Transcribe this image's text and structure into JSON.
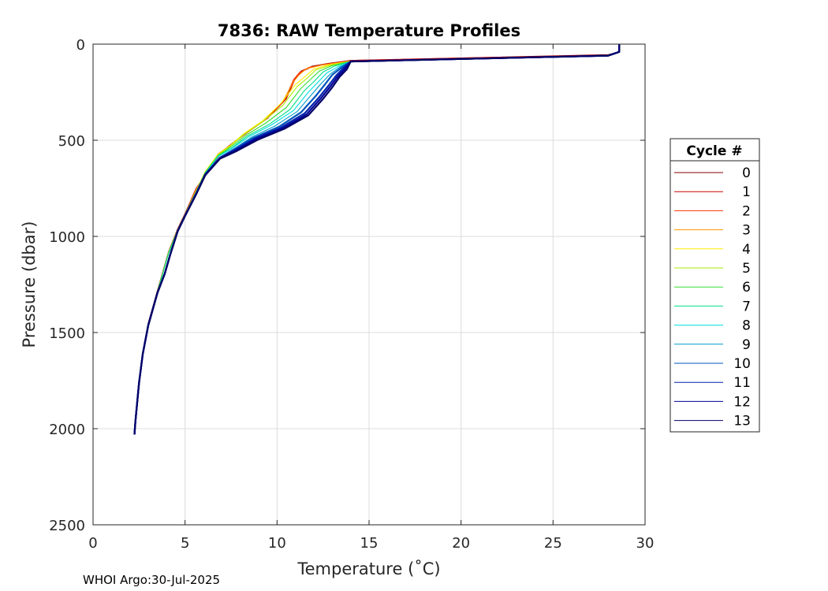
{
  "chart_data": {
    "type": "line",
    "title": "7836: RAW Temperature Profiles",
    "xlabel": "Temperature (˚C)",
    "ylabel": "Pressure (dbar)",
    "xlim": [
      0,
      30
    ],
    "ylim": [
      2500,
      0
    ],
    "y_reversed": true,
    "grid": true,
    "x_ticks": [
      0,
      5,
      10,
      15,
      20,
      25,
      30
    ],
    "y_ticks": [
      0,
      500,
      1000,
      1500,
      2000,
      2500
    ],
    "legend": {
      "title": "Cycle #",
      "position": "right",
      "entries": [
        "0",
        "1",
        "2",
        "3",
        "4",
        "5",
        "6",
        "7",
        "8",
        "9",
        "10",
        "11",
        "12",
        "13"
      ],
      "colors": [
        "#800000",
        "#cc0000",
        "#ff3300",
        "#ff9900",
        "#ffee00",
        "#aaee00",
        "#33dd33",
        "#00dd88",
        "#00dddd",
        "#0099cc",
        "#0055bb",
        "#0022aa",
        "#000099",
        "#000066"
      ]
    },
    "series": [
      {
        "name": "0",
        "temperature": [
          28.6,
          28.6,
          28.0,
          14.0,
          12.8,
          11.9,
          11.3,
          11.0,
          10.5,
          9.5,
          8.5,
          7.5,
          7.0,
          6.3,
          5.6,
          5.0,
          4.6,
          4.1,
          3.8,
          3.5,
          3.0,
          2.7,
          2.5,
          2.3,
          2.25
        ],
        "pressure": [
          0,
          40,
          55,
          85,
          100,
          115,
          140,
          175,
          280,
          380,
          450,
          520,
          560,
          650,
          750,
          880,
          960,
          1080,
          1180,
          1280,
          1450,
          1600,
          1750,
          1950,
          2030
        ]
      },
      {
        "name": "1",
        "temperature": [
          28.6,
          28.6,
          28.0,
          14.0,
          12.8,
          11.9,
          11.3,
          11.0,
          10.5,
          9.5,
          8.5,
          7.5,
          7.0,
          6.3,
          5.6,
          5.0,
          4.6,
          4.1,
          3.8,
          3.5,
          3.0,
          2.7,
          2.5,
          2.3,
          2.25
        ],
        "pressure": [
          0,
          40,
          56,
          85,
          102,
          118,
          145,
          178,
          285,
          385,
          452,
          522,
          562,
          652,
          752,
          882,
          962,
          1082,
          1182,
          1282,
          1452,
          1602,
          1752,
          1952,
          2030
        ]
      },
      {
        "name": "2",
        "temperature": [
          28.6,
          28.6,
          28.0,
          14.0,
          12.6,
          11.7,
          11.2,
          10.9,
          10.4,
          9.4,
          8.4,
          7.5,
          6.9,
          6.2,
          5.6,
          5.0,
          4.6,
          4.1,
          3.8,
          3.5,
          3.0,
          2.7,
          2.5,
          2.3,
          2.25
        ],
        "pressure": [
          0,
          40,
          58,
          87,
          105,
          122,
          150,
          185,
          290,
          390,
          455,
          525,
          565,
          655,
          755,
          883,
          963,
          1083,
          1183,
          1283,
          1453,
          1603,
          1753,
          1953,
          2030
        ]
      },
      {
        "name": "3",
        "temperature": [
          28.6,
          28.6,
          28.0,
          14.0,
          12.5,
          11.6,
          11.2,
          10.9,
          10.3,
          9.3,
          8.3,
          7.4,
          6.8,
          6.2,
          5.6,
          5.0,
          4.6,
          4.1,
          3.8,
          3.5,
          3.0,
          2.7,
          2.5,
          2.3,
          2.25
        ],
        "pressure": [
          0,
          40,
          60,
          88,
          108,
          128,
          160,
          195,
          300,
          395,
          460,
          530,
          570,
          660,
          760,
          884,
          964,
          1084,
          1184,
          1284,
          1454,
          1604,
          1754,
          1954,
          2030
        ]
      },
      {
        "name": "4",
        "temperature": [
          28.6,
          28.6,
          28.0,
          14.0,
          12.8,
          12.0,
          11.5,
          11.0,
          10.2,
          9.2,
          8.2,
          7.4,
          6.8,
          6.1,
          5.6,
          5.0,
          4.6,
          4.1,
          3.8,
          3.5,
          3.0,
          2.7,
          2.5,
          2.3,
          2.25
        ],
        "pressure": [
          0,
          40,
          60,
          88,
          108,
          130,
          170,
          210,
          310,
          400,
          465,
          532,
          572,
          662,
          762,
          885,
          965,
          1085,
          1185,
          1285,
          1455,
          1605,
          1755,
          1955,
          2030
        ]
      },
      {
        "name": "5",
        "temperature": [
          28.6,
          28.6,
          28.0,
          14.0,
          12.9,
          12.1,
          11.6,
          11.1,
          10.3,
          9.2,
          8.2,
          7.4,
          6.8,
          6.1,
          5.6,
          5.0,
          4.6,
          4.1,
          3.8,
          3.5,
          3.0,
          2.7,
          2.5,
          2.3,
          2.25
        ],
        "pressure": [
          0,
          40,
          60,
          89,
          110,
          135,
          180,
          220,
          320,
          405,
          470,
          535,
          575,
          665,
          765,
          886,
          966,
          1086,
          1186,
          1286,
          1456,
          1606,
          1756,
          1956,
          2030
        ]
      },
      {
        "name": "6",
        "temperature": [
          28.6,
          28.6,
          28.0,
          14.0,
          13.0,
          12.3,
          11.8,
          11.3,
          10.5,
          9.4,
          8.3,
          7.4,
          6.8,
          6.1,
          5.6,
          5.0,
          4.6,
          4.1,
          3.8,
          3.5,
          3.0,
          2.7,
          2.5,
          2.3,
          2.25
        ],
        "pressure": [
          0,
          40,
          60,
          90,
          112,
          140,
          185,
          230,
          330,
          410,
          475,
          540,
          580,
          668,
          768,
          887,
          967,
          1087,
          1187,
          1287,
          1457,
          1607,
          1757,
          1957,
          2030
        ]
      },
      {
        "name": "7",
        "temperature": [
          28.6,
          28.6,
          28.0,
          14.0,
          13.1,
          12.5,
          12.0,
          11.5,
          10.7,
          9.6,
          8.4,
          7.5,
          6.8,
          6.1,
          5.6,
          5.0,
          4.6,
          4.1,
          3.8,
          3.5,
          3.0,
          2.7,
          2.5,
          2.3,
          2.25
        ],
        "pressure": [
          0,
          40,
          60,
          90,
          115,
          145,
          195,
          240,
          340,
          415,
          478,
          542,
          582,
          670,
          770,
          888,
          968,
          1088,
          1188,
          1288,
          1458,
          1608,
          1758,
          1958,
          2030
        ]
      },
      {
        "name": "8",
        "temperature": [
          28.6,
          28.6,
          28.0,
          14.0,
          13.3,
          12.7,
          12.2,
          11.7,
          10.9,
          9.7,
          8.5,
          7.5,
          6.8,
          6.1,
          5.6,
          5.0,
          4.6,
          4.2,
          3.9,
          3.5,
          3.0,
          2.7,
          2.5,
          2.3,
          2.25
        ],
        "pressure": [
          0,
          40,
          60,
          90,
          118,
          150,
          200,
          250,
          345,
          420,
          480,
          545,
          585,
          672,
          772,
          889,
          969,
          1089,
          1189,
          1289,
          1459,
          1609,
          1759,
          1959,
          2030
        ]
      },
      {
        "name": "9",
        "temperature": [
          28.6,
          28.6,
          28.0,
          14.0,
          13.4,
          12.9,
          12.4,
          11.9,
          11.1,
          9.9,
          8.6,
          7.6,
          6.9,
          6.1,
          5.6,
          5.0,
          4.6,
          4.2,
          3.9,
          3.5,
          3.0,
          2.7,
          2.5,
          2.3,
          2.25
        ],
        "pressure": [
          0,
          40,
          60,
          90,
          120,
          155,
          205,
          260,
          350,
          425,
          485,
          548,
          588,
          674,
          774,
          890,
          970,
          1090,
          1190,
          1290,
          1460,
          1610,
          1760,
          1960,
          2030
        ]
      },
      {
        "name": "10",
        "temperature": [
          28.6,
          28.6,
          28.0,
          14.0,
          13.5,
          13.0,
          12.6,
          12.1,
          11.3,
          10.1,
          8.7,
          7.6,
          6.9,
          6.1,
          5.6,
          5.0,
          4.6,
          4.2,
          3.9,
          3.5,
          3.0,
          2.7,
          2.5,
          2.3,
          2.25
        ],
        "pressure": [
          0,
          40,
          60,
          90,
          122,
          160,
          210,
          270,
          355,
          430,
          488,
          550,
          590,
          676,
          776,
          891,
          971,
          1091,
          1191,
          1291,
          1461,
          1611,
          1761,
          1961,
          2030
        ]
      },
      {
        "name": "11",
        "temperature": [
          28.6,
          28.6,
          28.0,
          14.0,
          13.6,
          13.2,
          12.8,
          12.3,
          11.5,
          10.2,
          8.8,
          7.7,
          6.9,
          6.1,
          5.6,
          5.0,
          4.6,
          4.2,
          3.9,
          3.5,
          3.0,
          2.7,
          2.5,
          2.3,
          2.25
        ],
        "pressure": [
          0,
          40,
          60,
          90,
          125,
          165,
          215,
          275,
          360,
          435,
          490,
          552,
          592,
          678,
          778,
          892,
          972,
          1092,
          1192,
          1292,
          1462,
          1612,
          1762,
          1962,
          2030
        ]
      },
      {
        "name": "12",
        "temperature": [
          28.6,
          28.6,
          28.0,
          14.0,
          13.7,
          13.3,
          12.9,
          12.4,
          11.6,
          10.3,
          8.9,
          7.7,
          6.9,
          6.1,
          5.6,
          5.0,
          4.6,
          4.2,
          3.9,
          3.5,
          3.0,
          2.7,
          2.5,
          2.3,
          2.25
        ],
        "pressure": [
          0,
          40,
          60,
          90,
          127,
          168,
          220,
          280,
          365,
          438,
          492,
          554,
          594,
          680,
          780,
          893,
          973,
          1093,
          1193,
          1293,
          1463,
          1613,
          1763,
          1963,
          2030
        ]
      },
      {
        "name": "13",
        "temperature": [
          28.6,
          28.6,
          28.0,
          14.0,
          13.8,
          13.4,
          13.0,
          12.5,
          11.7,
          10.4,
          9.0,
          7.8,
          6.9,
          6.1,
          5.6,
          5.0,
          4.6,
          4.2,
          3.9,
          3.5,
          3.0,
          2.7,
          2.5,
          2.3,
          2.25
        ],
        "pressure": [
          0,
          40,
          60,
          90,
          130,
          170,
          225,
          285,
          370,
          440,
          495,
          556,
          596,
          682,
          782,
          894,
          974,
          1094,
          1194,
          1294,
          1464,
          1614,
          1764,
          1964,
          2030
        ]
      }
    ]
  },
  "footer": {
    "text": "WHOI Argo:30-Jul-2025"
  }
}
